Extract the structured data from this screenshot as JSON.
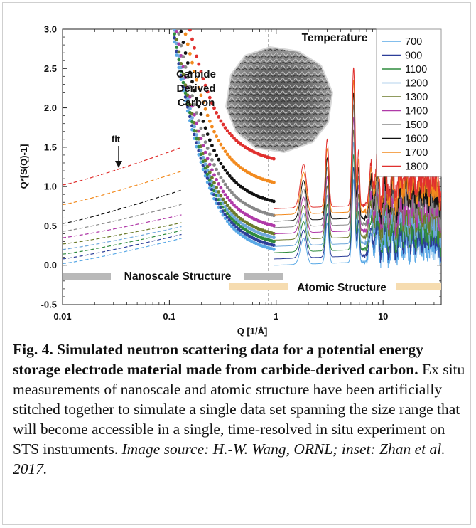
{
  "chart_data": {
    "type": "line",
    "xlabel": "Q [1/Å]",
    "ylabel": "Q*[S(Q)-1]",
    "xscale": "log",
    "xlim": [
      0.01,
      35
    ],
    "ylim": [
      -0.5,
      3.0
    ],
    "x_ticks": [
      "0.01",
      "0.1",
      "1",
      "10"
    ],
    "y_ticks": [
      "-0.5",
      "0.0",
      "0.5",
      "1.0",
      "1.5",
      "2.0",
      "2.5",
      "3.0"
    ],
    "legend_title": "Temperature",
    "legend_position": "top-right",
    "cutoff_line_x": 0.85,
    "series": [
      {
        "name": "700",
        "color": "#5aa9e6",
        "plateau": 0.33,
        "low_q_fit": 0.02
      },
      {
        "name": "900",
        "color": "#2c3e99",
        "plateau": 0.38,
        "low_q_fit": 0.08
      },
      {
        "name": "1100",
        "color": "#2e8b3d",
        "plateau": 0.43,
        "low_q_fit": 0.14
      },
      {
        "name": "1200",
        "color": "#6fa8dc",
        "plateau": 0.48,
        "low_q_fit": 0.2
      },
      {
        "name": "1300",
        "color": "#6b7a2a",
        "plateau": 0.53,
        "low_q_fit": 0.27
      },
      {
        "name": "1400",
        "color": "#b03aa8",
        "plateau": 0.63,
        "low_q_fit": 0.35
      },
      {
        "name": "1500",
        "color": "#888888",
        "plateau": 0.76,
        "low_q_fit": 0.43
      },
      {
        "name": "1600",
        "color": "#111111",
        "plateau": 0.94,
        "low_q_fit": 0.53
      },
      {
        "name": "1700",
        "color": "#f28a1e",
        "plateau": 1.18,
        "low_q_fit": 0.77
      },
      {
        "name": "1800",
        "color": "#e0302e",
        "plateau": 1.48,
        "low_q_fit": 1.02
      }
    ],
    "annotations": {
      "fit_label": "fit",
      "inset_label": [
        "Carbide",
        "Derived",
        "Carbon"
      ],
      "nanoscale_label": "Nanoscale Structure",
      "atomic_label": "Atomic Structure"
    }
  },
  "caption": {
    "bold": "Fig. 4. Simulated neutron scattering data for a potential energy storage electrode material made from carbide-derived carbon.",
    "body": " Ex situ measurements of nanoscale and atomic structure have been artificially stitched together to simulate a single data set spanning the size range that will become accessible in a single, time-resolved in situ experiment on STS instruments. ",
    "source": "Image source: H.-W. Wang, ORNL; inset: Zhan et al. 2017."
  }
}
